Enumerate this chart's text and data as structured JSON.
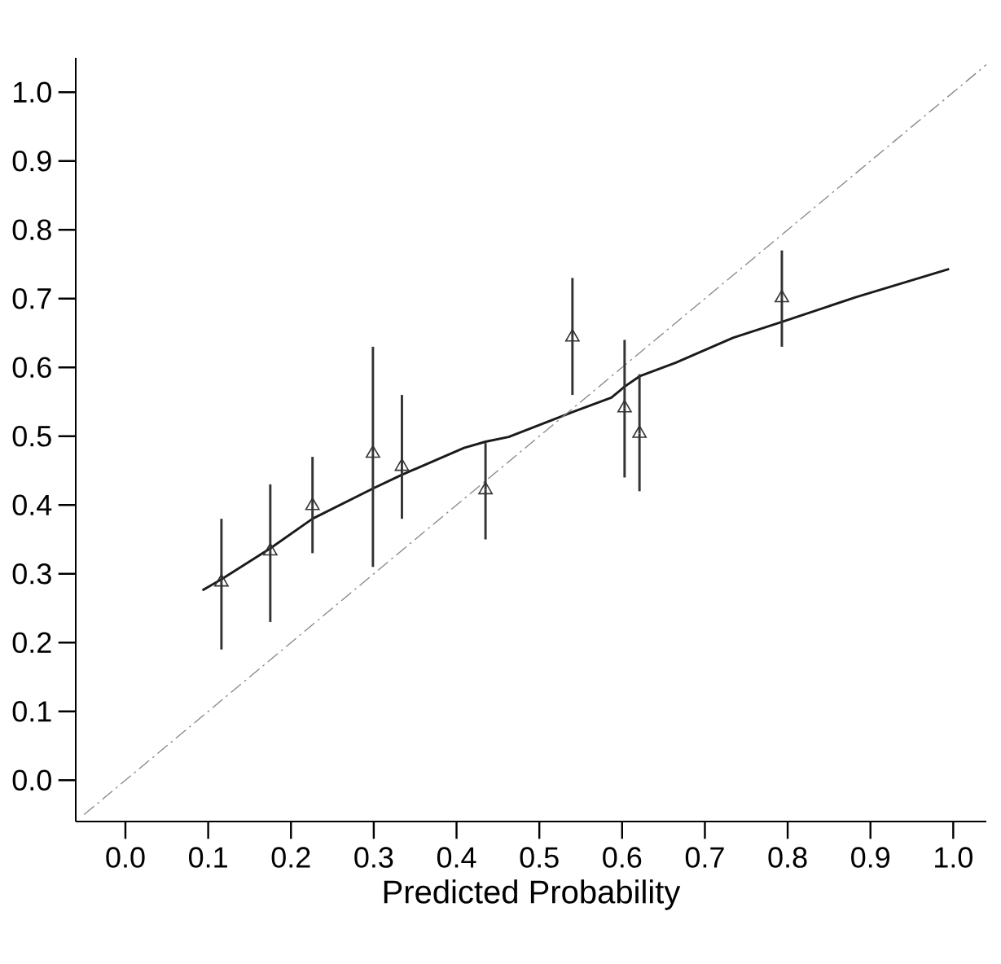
{
  "chart_data": {
    "type": "scatter",
    "xlabel": "Predicted Probability",
    "xlim": [
      -0.06,
      1.04
    ],
    "ylim": [
      -0.06,
      1.05
    ],
    "xticks": [
      {
        "value": 0.0,
        "label": "0.0"
      },
      {
        "value": 0.1,
        "label": "0.1"
      },
      {
        "value": 0.2,
        "label": "0.2"
      },
      {
        "value": 0.3,
        "label": "0.3"
      },
      {
        "value": 0.4,
        "label": "0.4"
      },
      {
        "value": 0.5,
        "label": "0.5"
      },
      {
        "value": 0.6,
        "label": "0.6"
      },
      {
        "value": 0.7,
        "label": "0.7"
      },
      {
        "value": 0.8,
        "label": "0.8"
      },
      {
        "value": 0.9,
        "label": "0.9"
      },
      {
        "value": 1.0,
        "label": "1.0"
      }
    ],
    "yticks": [
      {
        "value": 0.0,
        "label": "0.0"
      },
      {
        "value": 0.1,
        "label": "0.1"
      },
      {
        "value": 0.2,
        "label": "0.2"
      },
      {
        "value": 0.3,
        "label": "0.3"
      },
      {
        "value": 0.4,
        "label": "0.4"
      },
      {
        "value": 0.5,
        "label": "0.5"
      },
      {
        "value": 0.6,
        "label": "0.6"
      },
      {
        "value": 0.7,
        "label": "0.7"
      },
      {
        "value": 0.8,
        "label": "0.8"
      },
      {
        "value": 0.9,
        "label": "0.9"
      },
      {
        "value": 1.0,
        "label": "1.0"
      }
    ],
    "grid": false,
    "series": [
      {
        "color": "#333333",
        "marker": "triangle",
        "x": [
          0.116,
          0.175,
          0.226,
          0.299,
          0.334,
          0.435,
          0.54,
          0.603,
          0.621,
          0.793
        ],
        "values": [
          0.288,
          0.333,
          0.399,
          0.475,
          0.456,
          0.422,
          0.644,
          0.541,
          0.504,
          0.701
        ],
        "errors": [
          [
            0.19,
            0.38
          ],
          [
            0.23,
            0.43
          ],
          [
            0.33,
            0.47
          ],
          [
            0.31,
            0.63
          ],
          [
            0.38,
            0.56
          ],
          [
            0.35,
            0.49
          ],
          [
            0.56,
            0.73
          ],
          [
            0.44,
            0.64
          ],
          [
            0.42,
            0.59
          ],
          [
            0.63,
            0.77
          ]
        ]
      },
      {
        "type": "line",
        "color": "#1a1a1a",
        "marker": "none",
        "line_style": "solid",
        "x": [
          0.093,
          0.116,
          0.175,
          0.226,
          0.299,
          0.334,
          0.409,
          0.435,
          0.463,
          0.54,
          0.587,
          0.603,
          0.621,
          0.665,
          0.734,
          0.793,
          0.882,
          0.995
        ],
        "values": [
          0.276,
          0.292,
          0.337,
          0.38,
          0.424,
          0.444,
          0.483,
          0.492,
          0.499,
          0.535,
          0.556,
          0.572,
          0.587,
          0.607,
          0.643,
          0.666,
          0.702,
          0.743
        ]
      },
      {
        "type": "line",
        "color": "#888888",
        "marker": "none",
        "line_style": "dashed",
        "x": [
          -0.05,
          1.04
        ],
        "values": [
          -0.05,
          1.04
        ]
      }
    ]
  }
}
